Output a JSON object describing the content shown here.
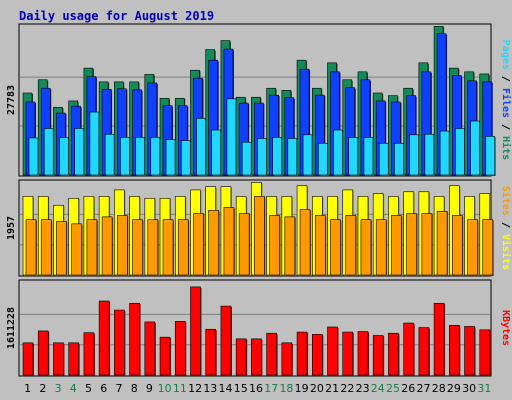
{
  "title": "Daily usage for August 2019",
  "colors": {
    "background": "#c0c0c0",
    "title": "#0000c0",
    "hits": "#138a5a",
    "files": "#1040ff",
    "pages": "#20d8ff",
    "visits": "#ffff00",
    "sites": "#ff9900",
    "kbytes": "#ff0000",
    "day_weekday": "#000000",
    "day_weekend": "#1a7a4a"
  },
  "labels": {
    "hits_panel_max": "27783",
    "visits_panel_max": "1957",
    "kbytes_panel_max": "1611228",
    "pages": "Pages",
    "files": "Files",
    "hits": "Hits",
    "sites": "Sites",
    "visits": "Visits",
    "kbytes": "KBytes",
    "sep": " / "
  },
  "chart_data": {
    "type": "bar",
    "title": "Daily usage for August 2019",
    "categories": [
      "1",
      "2",
      "3",
      "4",
      "5",
      "6",
      "7",
      "8",
      "9",
      "10",
      "11",
      "12",
      "13",
      "14",
      "15",
      "16",
      "17",
      "18",
      "19",
      "20",
      "21",
      "22",
      "23",
      "24",
      "25",
      "26",
      "27",
      "28",
      "29",
      "30",
      "31"
    ],
    "weekend_days": [
      "3",
      "4",
      "10",
      "11",
      "17",
      "18",
      "24",
      "25",
      "31"
    ],
    "panels": [
      {
        "name": "hits-files-pages",
        "max_label": "27783",
        "ylim": [
          0,
          27783
        ],
        "series": [
          {
            "name": "Hits",
            "values": [
              15500,
              18000,
              12800,
              14000,
              20200,
              17600,
              17600,
              17600,
              19000,
              14500,
              14500,
              19800,
              23700,
              25400,
              14700,
              14700,
              16400,
              16000,
              21700,
              16400,
              21200,
              18000,
              19500,
              15500,
              15000,
              16400,
              21200,
              28100,
              20200,
              19500,
              19100
            ]
          },
          {
            "name": "Files",
            "values": [
              13800,
              16400,
              11700,
              13000,
              18600,
              16200,
              16300,
              16100,
              17400,
              13100,
              13100,
              18300,
              21700,
              23800,
              13600,
              13600,
              15100,
              14600,
              20000,
              15100,
              19500,
              16500,
              18000,
              14000,
              13800,
              15000,
              19500,
              26700,
              18800,
              17800,
              17600
            ]
          },
          {
            "name": "Pages",
            "values": [
              7000,
              8800,
              7100,
              8800,
              11900,
              7700,
              7100,
              7100,
              7100,
              6700,
              6500,
              10700,
              8500,
              14400,
              6200,
              6900,
              7100,
              6900,
              7600,
              6000,
              8500,
              7100,
              7100,
              6000,
              6000,
              7600,
              7700,
              8300,
              8800,
              10200,
              7300
            ]
          }
        ]
      },
      {
        "name": "visits-sites",
        "max_label": "1957",
        "ylim": [
          0,
          1957
        ],
        "series": [
          {
            "name": "Visits",
            "values": [
              1690,
              1690,
              1500,
              1650,
              1690,
              1690,
              1830,
              1690,
              1650,
              1650,
              1690,
              1830,
              1900,
              1900,
              1690,
              1990,
              1690,
              1690,
              1920,
              1690,
              1690,
              1830,
              1690,
              1750,
              1690,
              1790,
              1790,
              1690,
              1920,
              1690,
              1750
            ]
          },
          {
            "name": "Sites",
            "values": [
              1190,
              1190,
              1150,
              1100,
              1190,
              1250,
              1280,
              1190,
              1190,
              1190,
              1190,
              1320,
              1390,
              1450,
              1320,
              1690,
              1280,
              1250,
              1410,
              1280,
              1190,
              1280,
              1190,
              1190,
              1280,
              1320,
              1320,
              1370,
              1280,
              1190,
              1190
            ]
          }
        ]
      },
      {
        "name": "kbytes",
        "max_label": "1611228",
        "ylim": [
          0,
          1611228
        ],
        "series": [
          {
            "name": "KBytes",
            "values": [
              570000,
              780000,
              570000,
              570000,
              750000,
              1310000,
              1150000,
              1270000,
              940000,
              670000,
              950000,
              1560000,
              810000,
              1220000,
              640000,
              640000,
              740000,
              570000,
              760000,
              720000,
              850000,
              760000,
              770000,
              700000,
              740000,
              920000,
              840000,
              1270000,
              880000,
              860000,
              800000
            ]
          }
        ]
      }
    ]
  }
}
